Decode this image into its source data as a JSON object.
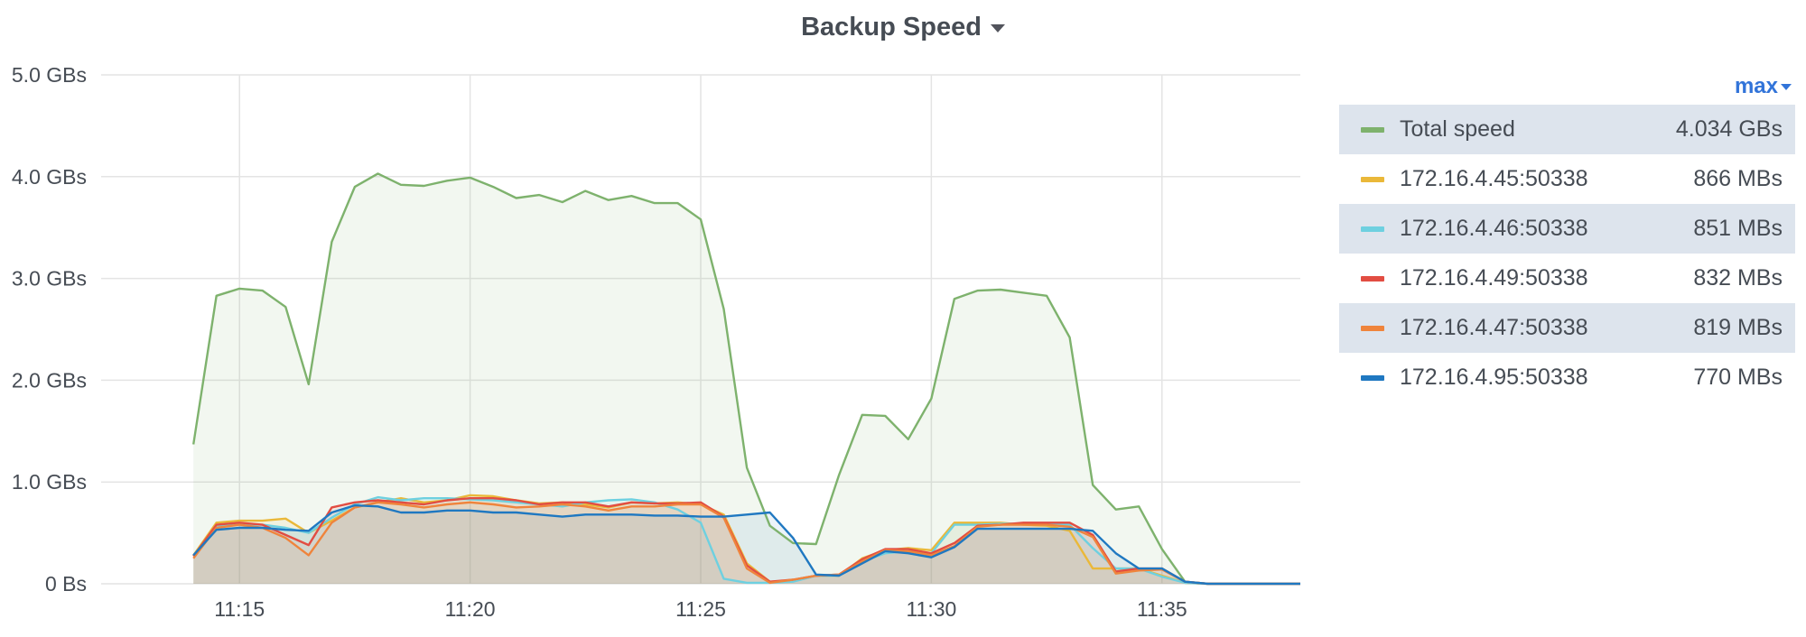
{
  "panel": {
    "title": "Backup Speed"
  },
  "legend": {
    "sort_label": "max",
    "items": [
      {
        "name": "Total speed",
        "value": "4.034 GBs",
        "color": "#7eb26d"
      },
      {
        "name": "172.16.4.45:50338",
        "value": "866 MBs",
        "color": "#eab839"
      },
      {
        "name": "172.16.4.46:50338",
        "value": "851 MBs",
        "color": "#6ed0e0"
      },
      {
        "name": "172.16.4.49:50338",
        "value": "832 MBs",
        "color": "#e24d42"
      },
      {
        "name": "172.16.4.47:50338",
        "value": "819 MBs",
        "color": "#ef843c"
      },
      {
        "name": "172.16.4.95:50338",
        "value": "770 MBs",
        "color": "#1f78c1"
      }
    ]
  },
  "chart_data": {
    "type": "area",
    "title": "Backup Speed",
    "x_unit": "minutes",
    "xlim": [
      "11:12",
      "11:38"
    ],
    "x_ticks": [
      "11:15",
      "11:20",
      "11:25",
      "11:30",
      "11:35"
    ],
    "ylim": [
      0,
      5
    ],
    "y_unit": "GBs",
    "y_ticks": [
      "0 Bs",
      "1.0 GBs",
      "2.0 GBs",
      "3.0 GBs",
      "4.0 GBs",
      "5.0 GBs"
    ],
    "y_tick_values": [
      0,
      1,
      2,
      3,
      4,
      5
    ],
    "grid": true,
    "legend_position": "right",
    "x": [
      "11:14",
      "11:14.5",
      "11:15",
      "11:15.5",
      "11:16",
      "11:16.5",
      "11:17",
      "11:17.5",
      "11:18",
      "11:18.5",
      "11:19",
      "11:19.5",
      "11:20",
      "11:20.5",
      "11:21",
      "11:21.5",
      "11:22",
      "11:22.5",
      "11:23",
      "11:23.5",
      "11:24",
      "11:24.5",
      "11:25",
      "11:25.5",
      "11:26",
      "11:26.5",
      "11:27",
      "11:27.5",
      "11:28",
      "11:28.5",
      "11:29",
      "11:29.5",
      "11:30",
      "11:30.5",
      "11:31",
      "11:31.5",
      "11:32",
      "11:32.5",
      "11:33",
      "11:33.5",
      "11:34",
      "11:34.5",
      "11:35",
      "11:35.5",
      "11:36",
      "11:36.5",
      "11:37",
      "11:37.5",
      "11:38"
    ],
    "series": [
      {
        "name": "Total speed",
        "color": "#7eb26d",
        "values": [
          1.37,
          2.83,
          2.9,
          2.88,
          2.72,
          1.96,
          3.36,
          3.9,
          4.03,
          3.92,
          3.91,
          3.96,
          3.99,
          3.9,
          3.79,
          3.82,
          3.75,
          3.86,
          3.77,
          3.81,
          3.74,
          3.74,
          3.58,
          2.7,
          1.14,
          0.57,
          0.4,
          0.39,
          1.07,
          1.66,
          1.65,
          1.42,
          1.82,
          2.8,
          2.88,
          2.89,
          2.86,
          2.83,
          2.42,
          0.97,
          0.73,
          0.76,
          0.34,
          0.02,
          0,
          0,
          0,
          0,
          0
        ]
      },
      {
        "name": "172.16.4.45:50338",
        "color": "#eab839",
        "values": [
          0.28,
          0.6,
          0.62,
          0.62,
          0.64,
          0.5,
          0.62,
          0.75,
          0.8,
          0.84,
          0.8,
          0.82,
          0.87,
          0.86,
          0.82,
          0.79,
          0.8,
          0.78,
          0.75,
          0.8,
          0.79,
          0.8,
          0.78,
          0.68,
          0.2,
          0.02,
          0.03,
          0.08,
          0.08,
          0.25,
          0.33,
          0.35,
          0.33,
          0.6,
          0.6,
          0.6,
          0.58,
          0.57,
          0.52,
          0.15,
          0.15,
          0.15,
          0.08,
          0.01,
          0,
          0,
          0,
          0,
          0
        ]
      },
      {
        "name": "172.16.4.46:50338",
        "color": "#6ed0e0",
        "values": [
          0.27,
          0.57,
          0.58,
          0.58,
          0.55,
          0.5,
          0.65,
          0.78,
          0.85,
          0.82,
          0.84,
          0.84,
          0.83,
          0.82,
          0.8,
          0.78,
          0.76,
          0.8,
          0.82,
          0.83,
          0.8,
          0.73,
          0.6,
          0.05,
          0.01,
          0.01,
          0.02,
          0.08,
          0.08,
          0.22,
          0.3,
          0.32,
          0.3,
          0.58,
          0.58,
          0.59,
          0.59,
          0.58,
          0.58,
          0.35,
          0.15,
          0.15,
          0.07,
          0.01,
          0,
          0,
          0,
          0,
          0
        ]
      },
      {
        "name": "172.16.4.49:50338",
        "color": "#e24d42",
        "values": [
          0.27,
          0.58,
          0.6,
          0.58,
          0.48,
          0.38,
          0.75,
          0.8,
          0.82,
          0.8,
          0.78,
          0.82,
          0.84,
          0.84,
          0.82,
          0.78,
          0.8,
          0.8,
          0.76,
          0.8,
          0.79,
          0.79,
          0.8,
          0.66,
          0.18,
          0.02,
          0.04,
          0.08,
          0.09,
          0.24,
          0.34,
          0.34,
          0.3,
          0.4,
          0.57,
          0.58,
          0.6,
          0.6,
          0.6,
          0.48,
          0.12,
          0.15,
          0.15,
          0.02,
          0,
          0,
          0,
          0,
          0
        ]
      },
      {
        "name": "172.16.4.47:50338",
        "color": "#ef843c",
        "values": [
          0.25,
          0.55,
          0.58,
          0.55,
          0.45,
          0.28,
          0.6,
          0.75,
          0.8,
          0.78,
          0.75,
          0.78,
          0.8,
          0.78,
          0.75,
          0.76,
          0.78,
          0.76,
          0.72,
          0.76,
          0.76,
          0.78,
          0.78,
          0.65,
          0.15,
          0.01,
          0.04,
          0.08,
          0.09,
          0.22,
          0.33,
          0.32,
          0.28,
          0.37,
          0.56,
          0.58,
          0.58,
          0.58,
          0.56,
          0.46,
          0.1,
          0.13,
          0.14,
          0.02,
          0,
          0,
          0,
          0,
          0
        ]
      },
      {
        "name": "172.16.4.95:50338",
        "color": "#1f78c1",
        "values": [
          0.28,
          0.53,
          0.55,
          0.55,
          0.53,
          0.52,
          0.7,
          0.77,
          0.76,
          0.7,
          0.7,
          0.72,
          0.72,
          0.7,
          0.7,
          0.68,
          0.66,
          0.68,
          0.68,
          0.68,
          0.67,
          0.67,
          0.66,
          0.66,
          0.68,
          0.7,
          0.45,
          0.09,
          0.08,
          0.2,
          0.32,
          0.3,
          0.26,
          0.36,
          0.54,
          0.54,
          0.54,
          0.54,
          0.54,
          0.52,
          0.3,
          0.15,
          0.15,
          0.02,
          0,
          0,
          0,
          0,
          0
        ]
      }
    ]
  }
}
